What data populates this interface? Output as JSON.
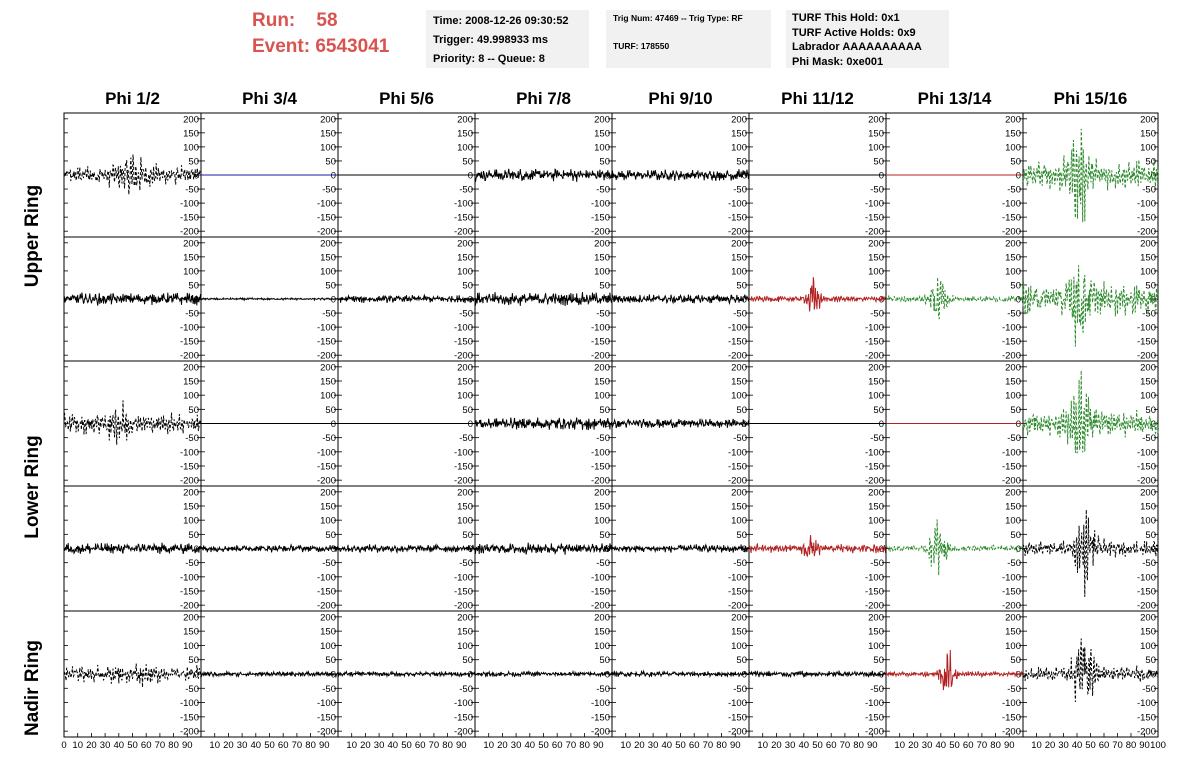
{
  "header": {
    "run_label": "Run:",
    "run_value": "58",
    "event_label": "Event:",
    "event_value": "6543041"
  },
  "info_time": {
    "time": "Time: 2008-12-26 09:30:52",
    "trigger": "Trigger: 49.998933 ms",
    "priority": "Priority: 8 -- Queue: 8"
  },
  "info_trig": {
    "trig": "Trig Num: 47469 -- Trig Type: RF",
    "turf": "TURF: 178550"
  },
  "info_turf": {
    "this_hold": "TURF This Hold: 0x1",
    "active_holds": "TURF Active Holds: 0x9",
    "labrador": "Labrador AAAAAAAAAA",
    "phi_mask": "Phi Mask: 0xe001"
  },
  "chart_data": {
    "type": "line",
    "column_titles": [
      "Phi 1/2",
      "Phi 3/4",
      "Phi 5/6",
      "Phi 7/8",
      "Phi 9/10",
      "Phi 11/12",
      "Phi 13/14",
      "Phi 15/16"
    ],
    "ring_labels": [
      "Upper Ring",
      "Lower Ring",
      "Nadir Ring"
    ],
    "ylim": [
      -210,
      210
    ],
    "yticks": [
      200,
      150,
      100,
      50,
      0,
      -50,
      -100,
      -150,
      -200
    ],
    "xlim": [
      0,
      100
    ],
    "xtick_labels": [
      "0",
      "10",
      "20",
      "30",
      "40",
      "50",
      "60",
      "70",
      "80",
      "90",
      "100"
    ],
    "colors": {
      "black": "#000000",
      "blue": "#1a1aa0",
      "red": "#b22222",
      "green": "#2e8b2e"
    },
    "rows": [
      [
        {
          "color": "black",
          "style": "dashed",
          "amp": 30,
          "pulse": [
            50,
            55,
            10
          ]
        },
        {
          "color": "blue",
          "style": "solid",
          "amp": 0
        },
        {
          "color": "black",
          "style": "solid",
          "amp": 0
        },
        {
          "color": "black",
          "style": "solid",
          "amp": 25
        },
        {
          "color": "black",
          "style": "solid",
          "amp": 22
        },
        {
          "color": "black",
          "style": "solid",
          "amp": 0
        },
        {
          "color": "red",
          "style": "solid",
          "amp": 0
        },
        {
          "color": "green",
          "style": "dashed",
          "amp": 45,
          "pulse": [
            42,
            115,
            8
          ]
        }
      ],
      [
        {
          "color": "black",
          "style": "solid",
          "amp": 24
        },
        {
          "color": "black",
          "style": "solid",
          "amp": 4
        },
        {
          "color": "black",
          "style": "solid",
          "amp": 15
        },
        {
          "color": "black",
          "style": "solid",
          "amp": 25
        },
        {
          "color": "black",
          "style": "solid",
          "amp": 18
        },
        {
          "color": "red",
          "style": "solid",
          "amp": 10,
          "pulse": [
            47,
            70,
            4
          ]
        },
        {
          "color": "green",
          "style": "dashed",
          "amp": 10,
          "pulse": [
            38,
            90,
            6
          ]
        },
        {
          "color": "green",
          "style": "dashed",
          "amp": 50,
          "pulse": [
            42,
            110,
            8
          ]
        }
      ],
      [
        {
          "color": "black",
          "style": "dashed",
          "amp": 30,
          "pulse": [
            40,
            40,
            10
          ]
        },
        {
          "color": "black",
          "style": "solid",
          "amp": 0
        },
        {
          "color": "black",
          "style": "solid",
          "amp": 0
        },
        {
          "color": "black",
          "style": "solid",
          "amp": 25
        },
        {
          "color": "black",
          "style": "solid",
          "amp": 18
        },
        {
          "color": "black",
          "style": "solid",
          "amp": 0
        },
        {
          "color": "red",
          "style": "solid",
          "amp": 0
        },
        {
          "color": "green",
          "style": "dashed",
          "amp": 40,
          "pulse": [
            42,
            110,
            8
          ]
        }
      ],
      [
        {
          "color": "black",
          "style": "solid",
          "amp": 22
        },
        {
          "color": "black",
          "style": "solid",
          "amp": 14
        },
        {
          "color": "black",
          "style": "solid",
          "amp": 15
        },
        {
          "color": "black",
          "style": "solid",
          "amp": 22
        },
        {
          "color": "black",
          "style": "solid",
          "amp": 15
        },
        {
          "color": "red",
          "style": "solid",
          "amp": 14,
          "pulse": [
            45,
            60,
            4
          ]
        },
        {
          "color": "green",
          "style": "dashed",
          "amp": 10,
          "pulse": [
            38,
            90,
            6
          ]
        },
        {
          "color": "black",
          "style": "dashed",
          "amp": 25,
          "pulse": [
            47,
            120,
            7
          ]
        }
      ],
      [
        {
          "color": "black",
          "style": "dashed",
          "amp": 25,
          "pulse": [
            48,
            20,
            12
          ]
        },
        {
          "color": "black",
          "style": "solid",
          "amp": 10
        },
        {
          "color": "black",
          "style": "solid",
          "amp": 10
        },
        {
          "color": "black",
          "style": "solid",
          "amp": 10
        },
        {
          "color": "black",
          "style": "solid",
          "amp": 10
        },
        {
          "color": "black",
          "style": "solid",
          "amp": 12
        },
        {
          "color": "red",
          "style": "solid",
          "amp": 8,
          "pulse": [
            45,
            100,
            5
          ]
        },
        {
          "color": "black",
          "style": "dashed",
          "amp": 22,
          "pulse": [
            45,
            130,
            7
          ]
        }
      ]
    ]
  }
}
